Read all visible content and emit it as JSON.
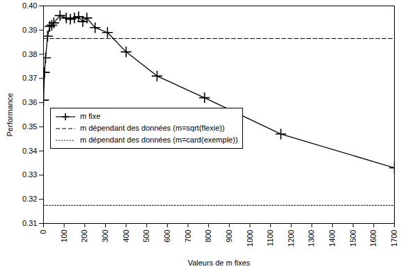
{
  "chart_data": {
    "type": "line",
    "xlabel": "Valeurs de m fixes",
    "ylabel": "Performance",
    "x": [
      0,
      5,
      10,
      20,
      30,
      40,
      50,
      80,
      110,
      130,
      150,
      170,
      190,
      210,
      250,
      310,
      400,
      550,
      780,
      1150,
      1700
    ],
    "series": [
      {
        "name": "m fixe",
        "color": "#000000",
        "marker": "plus",
        "line_style": "solid",
        "values": [
          0.361,
          0.3725,
          0.3785,
          0.3875,
          0.3915,
          0.392,
          0.393,
          0.396,
          0.395,
          0.3945,
          0.395,
          0.3955,
          0.3935,
          0.395,
          0.391,
          0.389,
          0.381,
          0.371,
          0.362,
          0.347,
          0.333
        ]
      },
      {
        "name": "m dépendant des données (m=sqrt(flexie))",
        "color": "#000000",
        "line_style": "dashed",
        "values": [
          0.3865,
          0.3865,
          0.3865,
          0.3865,
          0.3865,
          0.3865,
          0.3865,
          0.3865,
          0.3865,
          0.3865,
          0.3865,
          0.3865,
          0.3865,
          0.3865,
          0.3865,
          0.3865,
          0.3865,
          0.3865,
          0.3865,
          0.3865,
          0.3865
        ]
      },
      {
        "name": "m dépendant des données (m=card(exemple))",
        "color": "#000000",
        "line_style": "dotted",
        "values": [
          0.3175,
          0.3175,
          0.3175,
          0.3175,
          0.3175,
          0.3175,
          0.3175,
          0.3175,
          0.3175,
          0.3175,
          0.3175,
          0.3175,
          0.3175,
          0.3175,
          0.3175,
          0.3175,
          0.3175,
          0.3175,
          0.3175,
          0.3175,
          0.3175
        ]
      }
    ],
    "xlim": [
      0,
      1700
    ],
    "xticks": [
      0,
      100,
      200,
      300,
      400,
      500,
      600,
      700,
      800,
      900,
      1000,
      1100,
      1200,
      1300,
      1400,
      1500,
      1600,
      1700
    ],
    "ylim": [
      0.31,
      0.4
    ],
    "yticks": [
      0.31,
      0.32,
      0.33,
      0.34,
      0.35,
      0.36,
      0.37,
      0.38,
      0.39,
      {
        "value": 0.4,
        "label": "0.40"
      }
    ],
    "grid": false,
    "legend": "lower left"
  }
}
